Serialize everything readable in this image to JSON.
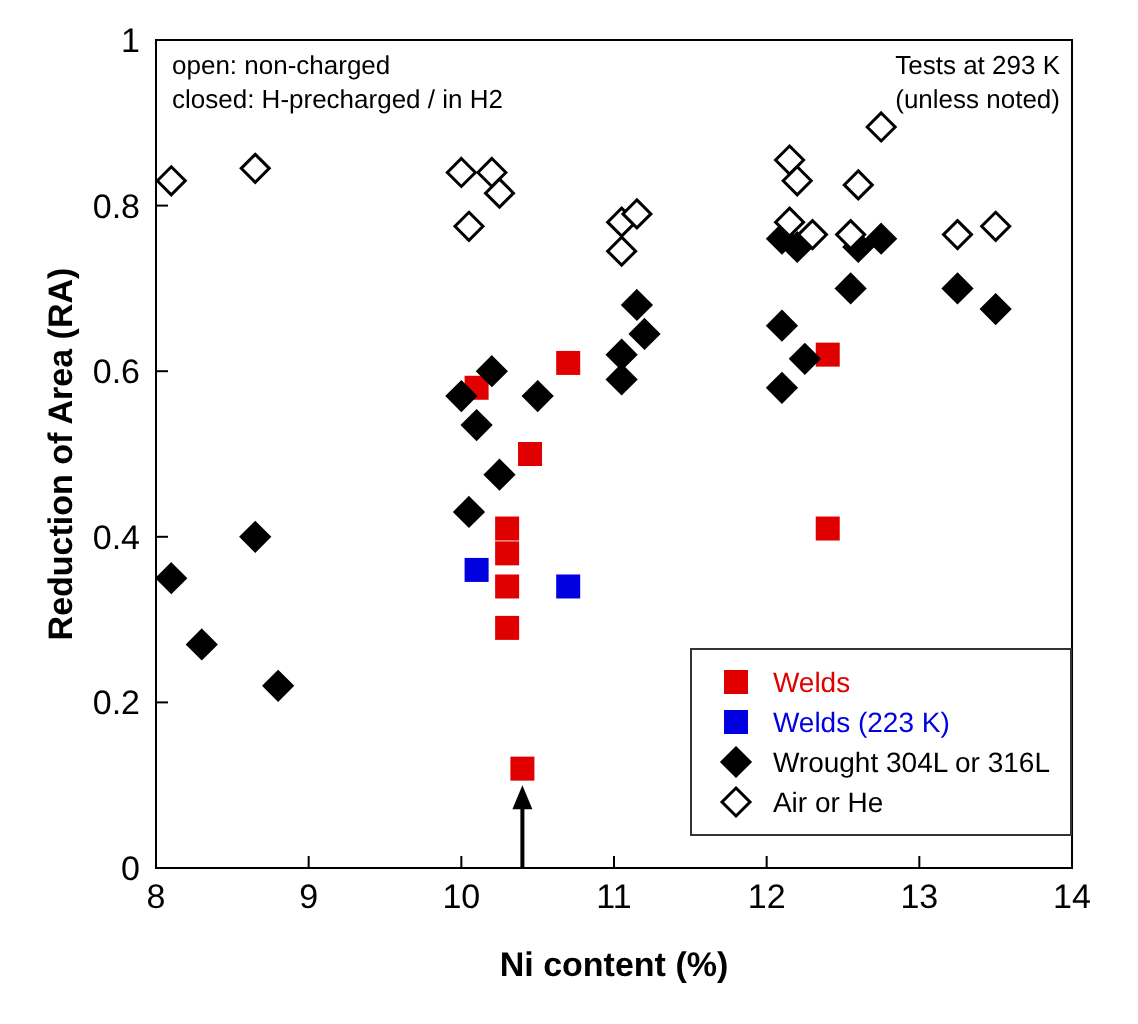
{
  "chart_data": {
    "type": "scatter",
    "xlabel": "Ni content (%)",
    "ylabel": "Reduction of Area (RA)",
    "xlim": [
      8,
      14
    ],
    "xticks": [
      8,
      9,
      10,
      11,
      12,
      13,
      14
    ],
    "ylim": [
      0,
      1
    ],
    "yticks": [
      0,
      0.2,
      0.4,
      0.6,
      0.8,
      1
    ],
    "grid": false,
    "legend": "bottom right",
    "annotations": [
      "open: non-charged\nclosed: H-precharged / in H2",
      "Tests at 293 K\n(unless noted)"
    ],
    "series": [
      {
        "name": "Welds",
        "color": "#e00000",
        "marker": "square",
        "x": [
          10.1,
          10.7,
          10.45,
          10.3,
          10.3,
          10.3,
          10.3,
          10.4,
          12.4,
          12.4
        ],
        "values": [
          0.58,
          0.61,
          0.5,
          0.41,
          0.38,
          0.34,
          0.29,
          0.12,
          0.62,
          0.41
        ]
      },
      {
        "name": "Welds (223 K)",
        "color": "#0000e0",
        "marker": "square",
        "x": [
          10.1,
          10.7
        ],
        "values": [
          0.36,
          0.34
        ]
      },
      {
        "name": "Wrought 304L or 316L",
        "color": "#000000",
        "marker": "diamond",
        "x": [
          8.1,
          8.3,
          8.65,
          8.8,
          10.0,
          10.1,
          10.2,
          10.5,
          10.25,
          10.05,
          11.05,
          11.05,
          11.15,
          11.2,
          12.1,
          12.1,
          12.25,
          12.1,
          12.2,
          12.55,
          12.6,
          12.75,
          13.25,
          13.5
        ],
        "values": [
          0.35,
          0.27,
          0.4,
          0.22,
          0.57,
          0.535,
          0.6,
          0.57,
          0.475,
          0.43,
          0.59,
          0.62,
          0.68,
          0.645,
          0.58,
          0.655,
          0.615,
          0.76,
          0.75,
          0.7,
          0.75,
          0.76,
          0.7,
          0.675
        ]
      },
      {
        "name": "Air or He",
        "color": "#ffffff",
        "marker": "diamond",
        "x": [
          8.1,
          8.65,
          10.0,
          10.05,
          10.2,
          10.25,
          11.05,
          11.05,
          11.15,
          12.15,
          12.2,
          12.15,
          12.3,
          12.55,
          12.6,
          12.75,
          13.25,
          13.5
        ],
        "values": [
          0.83,
          0.845,
          0.84,
          0.775,
          0.84,
          0.815,
          0.745,
          0.78,
          0.79,
          0.855,
          0.83,
          0.78,
          0.765,
          0.765,
          0.825,
          0.895,
          0.765,
          0.775
        ]
      }
    ]
  }
}
